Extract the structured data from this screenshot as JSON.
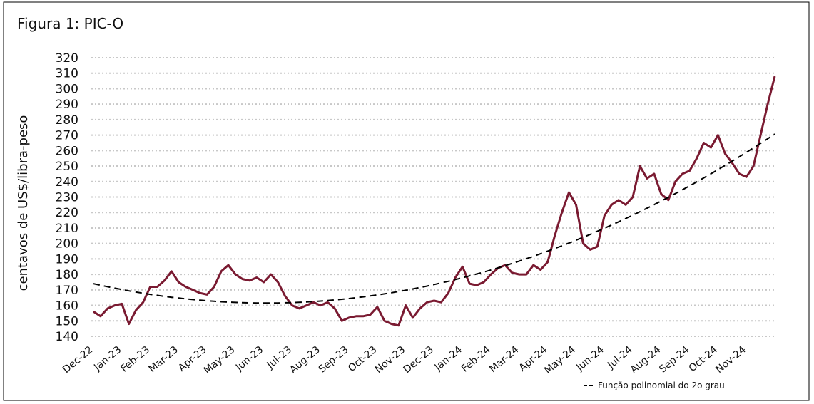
{
  "chart_data": {
    "type": "line",
    "title": "Figura 1: PIC-O",
    "y_label": "centavos de US$/libra-peso",
    "categories": [
      "Dec-22",
      null,
      null,
      null,
      "Jan-23",
      null,
      null,
      null,
      "Feb-23",
      null,
      null,
      null,
      "Mar-23",
      null,
      null,
      null,
      "Apr-23",
      null,
      null,
      null,
      "May-23",
      null,
      null,
      null,
      "Jun-23",
      null,
      null,
      null,
      "Jul-23",
      null,
      null,
      null,
      "Aug-23",
      null,
      null,
      null,
      "Sep-23",
      null,
      null,
      null,
      "Oct-23",
      null,
      null,
      null,
      "Nov-23",
      null,
      null,
      null,
      "Dec-23",
      null,
      null,
      null,
      "Jan-24",
      null,
      null,
      null,
      "Feb-24",
      null,
      null,
      null,
      "Mar-24",
      null,
      null,
      null,
      "Apr-24",
      null,
      null,
      null,
      "May-24",
      null,
      null,
      null,
      "Jun-24",
      null,
      null,
      null,
      "Jul-24",
      null,
      null,
      null,
      "Aug-24",
      null,
      null,
      null,
      "Sep-24",
      null,
      null,
      null,
      "Oct-24",
      null,
      null,
      null,
      "Nov-24",
      null,
      null,
      null,
      null
    ],
    "series": [
      {
        "color": "#7a1a31",
        "line_style": "solid",
        "values": [
          156,
          153,
          158,
          160,
          161,
          148,
          157,
          162,
          172,
          172,
          176,
          182,
          175,
          172,
          170,
          168,
          167,
          172,
          182,
          186,
          180,
          177,
          176,
          178,
          175,
          180,
          175,
          166,
          160,
          158,
          160,
          162,
          160,
          162,
          158,
          150,
          152,
          153,
          153,
          154,
          159,
          150,
          148,
          147,
          160,
          152,
          158,
          162,
          163,
          162,
          168,
          178,
          185,
          174,
          173,
          175,
          180,
          184,
          186,
          181,
          180,
          180,
          186,
          183,
          188,
          205,
          220,
          233,
          225,
          200,
          196,
          198,
          218,
          225,
          228,
          225,
          230,
          250,
          242,
          245,
          232,
          228,
          240,
          245,
          247,
          255,
          265,
          262,
          270,
          258,
          252,
          245,
          243,
          250,
          270,
          290,
          308
        ]
      },
      {
        "name": "Função polinomial do 2o grau",
        "color": "#000000",
        "line_style": "dashed",
        "values": [
          174.0,
          173.0,
          172.03,
          171.11,
          170.23,
          169.39,
          168.59,
          167.84,
          167.13,
          166.46,
          165.83,
          165.25,
          164.71,
          164.21,
          163.75,
          163.34,
          162.97,
          162.64,
          162.35,
          162.11,
          161.91,
          161.73,
          161.61,
          161.54,
          161.5,
          161.51,
          161.56,
          161.66,
          161.79,
          161.97,
          162.2,
          162.46,
          162.77,
          163.12,
          163.51,
          163.94,
          164.42,
          164.94,
          165.5,
          166.1,
          166.75,
          167.44,
          168.17,
          168.95,
          169.76,
          170.62,
          171.52,
          172.47,
          173.45,
          174.48,
          175.55,
          176.67,
          177.82,
          179.02,
          180.26,
          181.54,
          182.87,
          184.24,
          185.65,
          187.1,
          188.6,
          190.13,
          191.71,
          193.34,
          195.0,
          196.71,
          198.46,
          200.25,
          202.09,
          203.97,
          205.89,
          207.85,
          209.86,
          211.9,
          213.99,
          216.13,
          218.3,
          220.52,
          222.78,
          225.08,
          227.42,
          229.81,
          232.24,
          234.71,
          237.23,
          239.78,
          242.38,
          245.03,
          247.71,
          250.44,
          253.2,
          256.02,
          258.87,
          261.77,
          264.7,
          267.68,
          270.71
        ]
      }
    ],
    "ylim": [
      140,
      320
    ],
    "yticks": [
      140,
      150,
      160,
      170,
      180,
      190,
      200,
      210,
      220,
      230,
      240,
      250,
      260,
      270,
      280,
      290,
      300,
      310,
      320
    ],
    "grid": true,
    "legend": "bottom-right"
  }
}
